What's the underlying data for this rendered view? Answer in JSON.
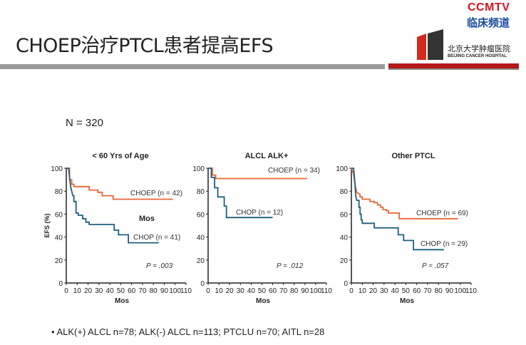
{
  "slide": {
    "title": "CHOEP治疗PTCL患者提高EFS",
    "n_label": "N = 320",
    "bullet": "•  ALK(+) ALCL n=78; ALK(-) ALCL n=113; PTCLU n=70; AITL n=28"
  },
  "logo": {
    "brand": "CCMTV",
    "brand_cn": "临床频道",
    "hospital_cn": "北京大学肿瘤医院",
    "hospital_en": "BEIJING CANCER HOSPITAL"
  },
  "colors": {
    "choep": "#e8673a",
    "chop": "#1f5f7f",
    "axis": "#222222"
  },
  "chart_data": [
    {
      "type": "line",
      "title": "< 60 Yrs of Age",
      "xlabel": "Mos",
      "ylabel": "EFS (%)",
      "xlim": [
        0,
        110
      ],
      "ylim": [
        0,
        100
      ],
      "xticks": [
        0,
        10,
        20,
        30,
        40,
        50,
        60,
        70,
        80,
        90,
        100,
        110
      ],
      "yticks": [
        0,
        20,
        40,
        60,
        80,
        100
      ],
      "annotation": "Mos",
      "p_value": "P = .003",
      "series": [
        {
          "name": "CHOEP (n = 42)",
          "key": "choep",
          "points": [
            [
              0,
              100
            ],
            [
              3,
              100
            ],
            [
              3,
              90
            ],
            [
              5,
              90
            ],
            [
              5,
              86
            ],
            [
              7,
              86
            ],
            [
              7,
              84
            ],
            [
              21,
              84
            ],
            [
              21,
              81
            ],
            [
              29,
              81
            ],
            [
              29,
              79
            ],
            [
              33,
              79
            ],
            [
              33,
              76
            ],
            [
              43,
              76
            ],
            [
              43,
              73
            ],
            [
              98,
              73
            ]
          ]
        },
        {
          "name": "CHOP (n = 41)",
          "key": "chop",
          "points": [
            [
              0,
              100
            ],
            [
              2,
              100
            ],
            [
              3,
              92
            ],
            [
              4,
              84
            ],
            [
              5,
              80
            ],
            [
              6,
              76
            ],
            [
              7,
              76
            ],
            [
              7,
              71
            ],
            [
              9,
              71
            ],
            [
              9,
              61
            ],
            [
              11,
              61
            ],
            [
              11,
              59
            ],
            [
              15,
              59
            ],
            [
              15,
              56
            ],
            [
              18,
              56
            ],
            [
              18,
              53
            ],
            [
              21,
              53
            ],
            [
              21,
              51
            ],
            [
              44,
              51
            ],
            [
              44,
              46
            ],
            [
              48,
              46
            ],
            [
              48,
              42
            ],
            [
              57,
              42
            ],
            [
              57,
              35
            ],
            [
              85,
              35
            ]
          ]
        }
      ]
    },
    {
      "type": "line",
      "title": "ALCL ALK+",
      "xlabel": "Mos",
      "ylabel": "",
      "xlim": [
        0,
        110
      ],
      "ylim": [
        0,
        100
      ],
      "xticks": [
        0,
        10,
        20,
        30,
        40,
        50,
        60,
        70,
        80,
        90,
        100,
        110
      ],
      "yticks": [
        0,
        20,
        40,
        60,
        80,
        100
      ],
      "annotation": "",
      "p_value": "P = .012",
      "series": [
        {
          "name": "CHOEP (n = 34)",
          "key": "choep",
          "points": [
            [
              0,
              100
            ],
            [
              4,
              100
            ],
            [
              4,
              94
            ],
            [
              7,
              94
            ],
            [
              7,
              91
            ],
            [
              92,
              91
            ]
          ]
        },
        {
          "name": "CHOP (n = 12)",
          "key": "chop",
          "points": [
            [
              0,
              100
            ],
            [
              3,
              100
            ],
            [
              3,
              92
            ],
            [
              6,
              92
            ],
            [
              6,
              83
            ],
            [
              9,
              83
            ],
            [
              9,
              75
            ],
            [
              15,
              75
            ],
            [
              15,
              67
            ],
            [
              17,
              67
            ],
            [
              17,
              57
            ],
            [
              60,
              57
            ]
          ]
        }
      ]
    },
    {
      "type": "line",
      "title": "Other PTCL",
      "xlabel": "Mos",
      "ylabel": "",
      "xlim": [
        0,
        110
      ],
      "ylim": [
        0,
        100
      ],
      "xticks": [
        0,
        10,
        20,
        30,
        40,
        50,
        60,
        70,
        80,
        90,
        100,
        110
      ],
      "yticks": [
        0,
        20,
        40,
        60,
        80,
        100
      ],
      "annotation": "",
      "p_value": "P = .057",
      "series": [
        {
          "name": "CHOEP (n = 69)",
          "key": "choep",
          "points": [
            [
              0,
              100
            ],
            [
              2,
              95
            ],
            [
              3,
              88
            ],
            [
              4,
              83
            ],
            [
              5,
              79
            ],
            [
              8,
              77
            ],
            [
              8,
              75
            ],
            [
              10,
              75
            ],
            [
              10,
              73
            ],
            [
              17,
              73
            ],
            [
              17,
              71
            ],
            [
              21,
              71
            ],
            [
              21,
              70
            ],
            [
              24,
              70
            ],
            [
              24,
              68
            ],
            [
              27,
              68
            ],
            [
              27,
              66
            ],
            [
              29,
              66
            ],
            [
              29,
              64
            ],
            [
              32,
              64
            ],
            [
              32,
              63
            ],
            [
              34,
              63
            ],
            [
              34,
              61
            ],
            [
              44,
              61
            ],
            [
              44,
              56
            ],
            [
              98,
              56
            ]
          ]
        },
        {
          "name": "CHOP (n = 29)",
          "key": "chop",
          "points": [
            [
              0,
              100
            ],
            [
              2,
              100
            ],
            [
              3,
              90
            ],
            [
              4,
              76
            ],
            [
              5,
              72
            ],
            [
              7,
              72
            ],
            [
              7,
              66
            ],
            [
              8,
              66
            ],
            [
              8,
              60
            ],
            [
              9,
              60
            ],
            [
              9,
              55
            ],
            [
              10,
              55
            ],
            [
              10,
              52
            ],
            [
              21,
              52
            ],
            [
              21,
              48
            ],
            [
              43,
              48
            ],
            [
              43,
              42
            ],
            [
              48,
              42
            ],
            [
              48,
              37
            ],
            [
              57,
              37
            ],
            [
              57,
              29
            ],
            [
              85,
              29
            ]
          ]
        }
      ]
    }
  ]
}
